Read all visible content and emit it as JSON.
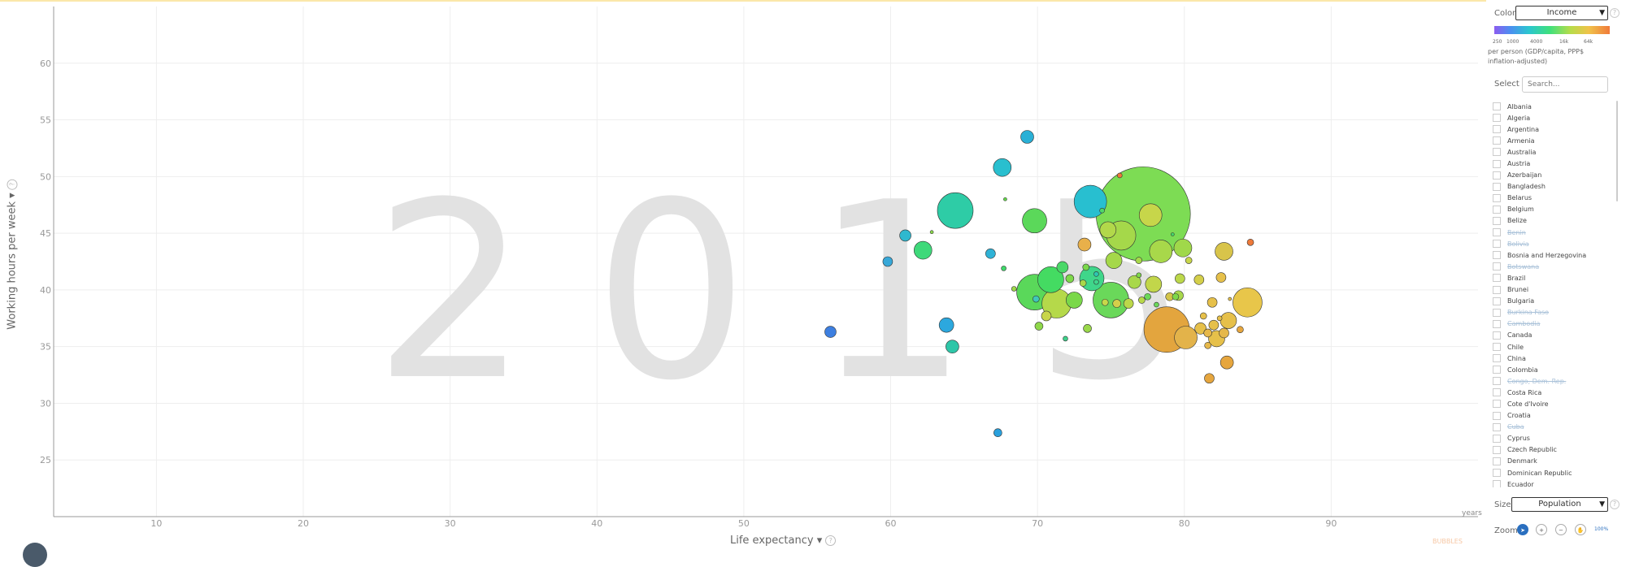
{
  "chart_data": {
    "type": "scatter",
    "year": "2015",
    "xlabel": "Life expectancy",
    "ylabel": "Working hours per week",
    "x_unit": "years",
    "xlim": [
      3,
      100
    ],
    "ylim": [
      20,
      65
    ],
    "x_ticks": [
      10,
      20,
      30,
      40,
      50,
      60,
      70,
      80,
      90
    ],
    "y_ticks": [
      25,
      30,
      35,
      40,
      45,
      50,
      55,
      60
    ],
    "grid": true,
    "color_indicator": "Income",
    "size_indicator": "Population",
    "points": [
      {
        "x": 55.9,
        "y": 36.3,
        "r": 7,
        "color": "#3d7fe0"
      },
      {
        "x": 59.8,
        "y": 42.5,
        "r": 6,
        "color": "#38a8d8"
      },
      {
        "x": 61.0,
        "y": 44.8,
        "r": 7,
        "color": "#2fb8cf"
      },
      {
        "x": 62.2,
        "y": 43.5,
        "r": 11,
        "color": "#3fd97a"
      },
      {
        "x": 62.8,
        "y": 45.1,
        "r": 2,
        "color": "#8ad84a"
      },
      {
        "x": 63.8,
        "y": 36.9,
        "r": 9,
        "color": "#2ca8de"
      },
      {
        "x": 64.2,
        "y": 35.0,
        "r": 8,
        "color": "#2ec6a8"
      },
      {
        "x": 64.4,
        "y": 47.0,
        "r": 22,
        "color": "#2ecca6"
      },
      {
        "x": 66.8,
        "y": 43.2,
        "r": 6,
        "color": "#2fb2d6"
      },
      {
        "x": 67.3,
        "y": 27.4,
        "r": 5,
        "color": "#2aa0dc"
      },
      {
        "x": 67.6,
        "y": 50.8,
        "r": 11,
        "color": "#29bfcf"
      },
      {
        "x": 67.7,
        "y": 41.9,
        "r": 3,
        "color": "#3fd96a"
      },
      {
        "x": 67.8,
        "y": 48.0,
        "r": 2,
        "color": "#64d84a"
      },
      {
        "x": 68.4,
        "y": 40.1,
        "r": 3,
        "color": "#a0d84a"
      },
      {
        "x": 69.3,
        "y": 53.5,
        "r": 8,
        "color": "#2ab0d6"
      },
      {
        "x": 69.8,
        "y": 39.8,
        "r": 22,
        "color": "#5ad85a"
      },
      {
        "x": 69.8,
        "y": 46.1,
        "r": 15,
        "color": "#5bd85a"
      },
      {
        "x": 69.9,
        "y": 39.2,
        "r": 4,
        "color": "#3fc8b8"
      },
      {
        "x": 70.1,
        "y": 36.8,
        "r": 5,
        "color": "#8fd84a"
      },
      {
        "x": 70.6,
        "y": 37.7,
        "r": 6,
        "color": "#c9d64a"
      },
      {
        "x": 70.9,
        "y": 40.9,
        "r": 16,
        "color": "#44db62"
      },
      {
        "x": 71.3,
        "y": 38.8,
        "r": 18,
        "color": "#b5d94a"
      },
      {
        "x": 71.7,
        "y": 42.0,
        "r": 7,
        "color": "#4ad868"
      },
      {
        "x": 71.9,
        "y": 35.7,
        "r": 3,
        "color": "#3ed18a"
      },
      {
        "x": 72.2,
        "y": 41.0,
        "r": 5,
        "color": "#7ed84a"
      },
      {
        "x": 72.5,
        "y": 39.1,
        "r": 10,
        "color": "#7ad84a"
      },
      {
        "x": 73.1,
        "y": 40.6,
        "r": 4,
        "color": "#a8d84a"
      },
      {
        "x": 73.2,
        "y": 44.0,
        "r": 8,
        "color": "#e8b04a"
      },
      {
        "x": 73.3,
        "y": 42.0,
        "r": 4,
        "color": "#7ad84a"
      },
      {
        "x": 73.4,
        "y": 36.6,
        "r": 5,
        "color": "#9ad84a"
      },
      {
        "x": 73.6,
        "y": 47.8,
        "r": 20,
        "color": "#28bfd0"
      },
      {
        "x": 73.7,
        "y": 41.0,
        "r": 15,
        "color": "#3fd68a"
      },
      {
        "x": 74.0,
        "y": 41.4,
        "r": 3,
        "color": "#2ec6b0"
      },
      {
        "x": 74.0,
        "y": 40.7,
        "r": 3,
        "color": "#3fd78c"
      },
      {
        "x": 74.4,
        "y": 47.0,
        "r": 3,
        "color": "#4fd86a"
      },
      {
        "x": 74.6,
        "y": 38.9,
        "r": 4,
        "color": "#c7d84a"
      },
      {
        "x": 74.8,
        "y": 45.3,
        "r": 10,
        "color": "#b2d84a"
      },
      {
        "x": 75.0,
        "y": 39.1,
        "r": 22,
        "color": "#6ad85a"
      },
      {
        "x": 75.2,
        "y": 42.6,
        "r": 10,
        "color": "#a5d84a"
      },
      {
        "x": 75.4,
        "y": 38.8,
        "r": 5,
        "color": "#d4cf4a"
      },
      {
        "x": 75.6,
        "y": 50.1,
        "r": 3,
        "color": "#f07a3a"
      },
      {
        "x": 75.7,
        "y": 44.8,
        "r": 18,
        "color": "#a5d84a"
      },
      {
        "x": 76.2,
        "y": 38.8,
        "r": 6,
        "color": "#bcd84a"
      },
      {
        "x": 76.6,
        "y": 40.7,
        "r": 8,
        "color": "#a8d84a"
      },
      {
        "x": 76.9,
        "y": 41.3,
        "r": 3,
        "color": "#7fd84a"
      },
      {
        "x": 76.9,
        "y": 42.6,
        "r": 4,
        "color": "#a8d84a"
      },
      {
        "x": 77.1,
        "y": 39.1,
        "r": 4,
        "color": "#b8d84a"
      },
      {
        "x": 77.2,
        "y": 46.7,
        "r": 58,
        "color": "#7ddc54"
      },
      {
        "x": 77.5,
        "y": 39.4,
        "r": 4,
        "color": "#6bd85a"
      },
      {
        "x": 77.7,
        "y": 46.6,
        "r": 14,
        "color": "#c7d64a"
      },
      {
        "x": 77.9,
        "y": 40.5,
        "r": 10,
        "color": "#c2d64a"
      },
      {
        "x": 78.1,
        "y": 38.7,
        "r": 3,
        "color": "#6ad85a"
      },
      {
        "x": 78.4,
        "y": 43.4,
        "r": 14,
        "color": "#a8d84a"
      },
      {
        "x": 78.8,
        "y": 36.5,
        "r": 28,
        "color": "#e3a53e"
      },
      {
        "x": 79.0,
        "y": 39.4,
        "r": 5,
        "color": "#d4c54a"
      },
      {
        "x": 79.2,
        "y": 44.9,
        "r": 2,
        "color": "#44d86a"
      },
      {
        "x": 79.4,
        "y": 39.4,
        "r": 4,
        "color": "#7ed84a"
      },
      {
        "x": 79.6,
        "y": 39.5,
        "r": 6,
        "color": "#a8d84a"
      },
      {
        "x": 79.7,
        "y": 41.0,
        "r": 6,
        "color": "#bcd84a"
      },
      {
        "x": 79.9,
        "y": 43.7,
        "r": 11,
        "color": "#a0d84a"
      },
      {
        "x": 80.1,
        "y": 35.8,
        "r": 14,
        "color": "#e3b34a"
      },
      {
        "x": 80.3,
        "y": 42.6,
        "r": 4,
        "color": "#c8d64a"
      },
      {
        "x": 81.0,
        "y": 40.9,
        "r": 6,
        "color": "#d4cf4a"
      },
      {
        "x": 81.1,
        "y": 36.6,
        "r": 7,
        "color": "#e6c04a"
      },
      {
        "x": 81.3,
        "y": 37.7,
        "r": 4,
        "color": "#e6c04a"
      },
      {
        "x": 81.6,
        "y": 36.2,
        "r": 5,
        "color": "#e6b84a"
      },
      {
        "x": 81.6,
        "y": 35.1,
        "r": 4,
        "color": "#e6b84a"
      },
      {
        "x": 81.7,
        "y": 32.2,
        "r": 6,
        "color": "#e6a63e"
      },
      {
        "x": 81.9,
        "y": 38.9,
        "r": 6,
        "color": "#e6c04a"
      },
      {
        "x": 82.0,
        "y": 36.9,
        "r": 6,
        "color": "#e6c04a"
      },
      {
        "x": 82.2,
        "y": 35.7,
        "r": 10,
        "color": "#e6c04a"
      },
      {
        "x": 82.4,
        "y": 37.5,
        "r": 3,
        "color": "#e6c04a"
      },
      {
        "x": 82.5,
        "y": 41.1,
        "r": 6,
        "color": "#e6c04a"
      },
      {
        "x": 82.7,
        "y": 36.2,
        "r": 6,
        "color": "#e6b84a"
      },
      {
        "x": 82.7,
        "y": 43.4,
        "r": 11,
        "color": "#d8c44a"
      },
      {
        "x": 82.9,
        "y": 33.6,
        "r": 8,
        "color": "#e6a63e"
      },
      {
        "x": 83.0,
        "y": 37.3,
        "r": 10,
        "color": "#e6c04a"
      },
      {
        "x": 83.1,
        "y": 39.2,
        "r": 2,
        "color": "#e6c04a"
      },
      {
        "x": 83.8,
        "y": 36.5,
        "r": 4,
        "color": "#e6a63e"
      },
      {
        "x": 84.3,
        "y": 38.9,
        "r": 18,
        "color": "#e8c64a"
      },
      {
        "x": 84.5,
        "y": 44.2,
        "r": 4,
        "color": "#ee7a3a"
      }
    ]
  },
  "axes": {
    "y_label": "Working hours per week",
    "x_label": "Life expectancy",
    "x_unit": "years"
  },
  "panel": {
    "color_label": "Color",
    "color_value": "Income",
    "legend_ticks": [
      "250",
      "1000",
      "4000",
      "16k",
      "64k"
    ],
    "legend_desc": "per person (GDP/capita, PPP$ inflation-adjusted)",
    "select_label": "Select",
    "search_placeholder": "Search...",
    "countries": [
      {
        "name": "Albania",
        "active": true
      },
      {
        "name": "Algeria",
        "active": true
      },
      {
        "name": "Argentina",
        "active": true
      },
      {
        "name": "Armenia",
        "active": true
      },
      {
        "name": "Australia",
        "active": true
      },
      {
        "name": "Austria",
        "active": true
      },
      {
        "name": "Azerbaijan",
        "active": true
      },
      {
        "name": "Bangladesh",
        "active": true
      },
      {
        "name": "Belarus",
        "active": true
      },
      {
        "name": "Belgium",
        "active": true
      },
      {
        "name": "Belize",
        "active": true
      },
      {
        "name": "Benin",
        "active": false
      },
      {
        "name": "Bolivia",
        "active": false
      },
      {
        "name": "Bosnia and Herzegovina",
        "active": true
      },
      {
        "name": "Botswana",
        "active": false
      },
      {
        "name": "Brazil",
        "active": true
      },
      {
        "name": "Brunei",
        "active": true
      },
      {
        "name": "Bulgaria",
        "active": true
      },
      {
        "name": "Burkina Faso",
        "active": false
      },
      {
        "name": "Cambodia",
        "active": false
      },
      {
        "name": "Canada",
        "active": true
      },
      {
        "name": "Chile",
        "active": true
      },
      {
        "name": "China",
        "active": true
      },
      {
        "name": "Colombia",
        "active": true
      },
      {
        "name": "Congo, Dem. Rep.",
        "active": false
      },
      {
        "name": "Costa Rica",
        "active": true
      },
      {
        "name": "Cote d'Ivoire",
        "active": true
      },
      {
        "name": "Croatia",
        "active": true
      },
      {
        "name": "Cuba",
        "active": false
      },
      {
        "name": "Cyprus",
        "active": true
      },
      {
        "name": "Czech Republic",
        "active": true
      },
      {
        "name": "Denmark",
        "active": true
      },
      {
        "name": "Dominican Republic",
        "active": true
      },
      {
        "name": "Ecuador",
        "active": true
      }
    ],
    "size_label": "Size",
    "size_value": "Population",
    "zoom_label": "Zoom",
    "zoom_pct": "100%"
  },
  "credit": "BUBBLES"
}
